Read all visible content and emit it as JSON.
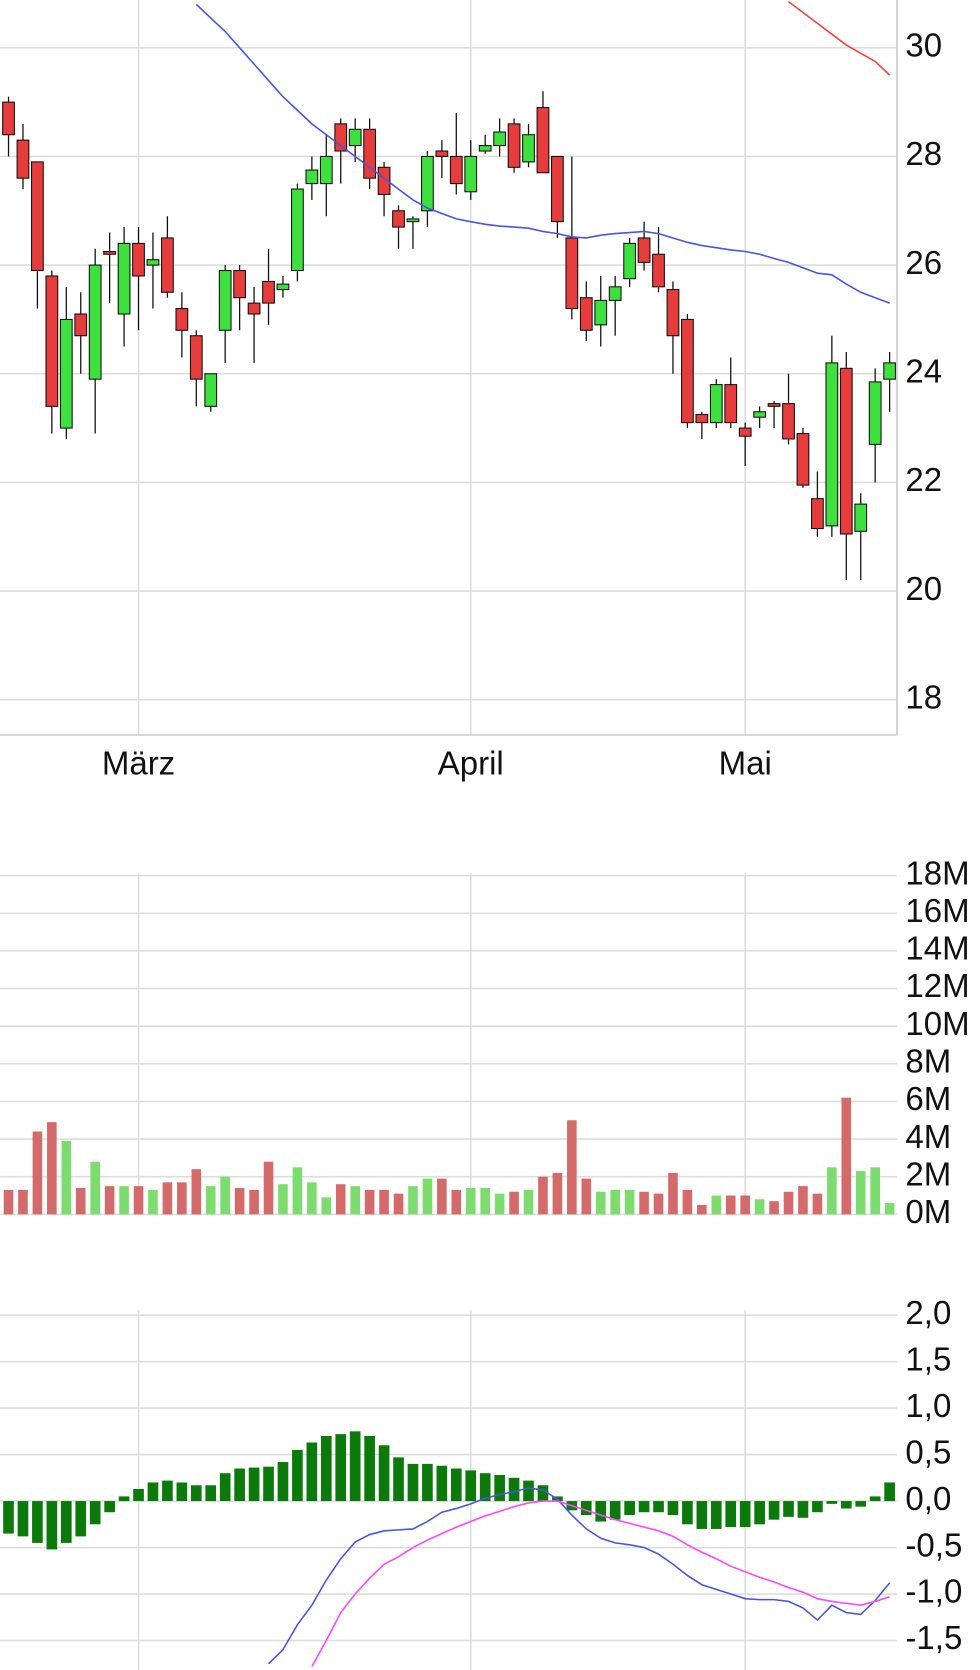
{
  "chart_data": [
    {
      "type": "candlestick",
      "categories": [
        null,
        null,
        null,
        null,
        null,
        null,
        null,
        null,
        null,
        "März",
        null,
        null,
        null,
        null,
        null,
        null,
        null,
        null,
        null,
        null,
        null,
        null,
        null,
        null,
        null,
        null,
        null,
        null,
        null,
        null,
        null,
        null,
        "April",
        null,
        null,
        null,
        null,
        null,
        null,
        null,
        null,
        null,
        null,
        null,
        null,
        null,
        null,
        null,
        null,
        null,
        null,
        "Mai",
        null,
        null,
        null,
        null,
        null,
        null,
        null,
        null,
        null,
        null
      ],
      "open": [
        29.0,
        28.3,
        27.9,
        25.8,
        23.0,
        25.1,
        23.9,
        26.25,
        25.1,
        26.4,
        26.0,
        26.5,
        25.2,
        24.7,
        23.4,
        24.8,
        25.9,
        25.3,
        25.7,
        25.55,
        25.9,
        27.5,
        27.5,
        28.6,
        28.2,
        28.5,
        27.8,
        27.0,
        26.8,
        27.0,
        28.1,
        28.0,
        27.35,
        28.1,
        28.2,
        28.6,
        27.9,
        28.9,
        28.0,
        26.5,
        25.4,
        24.9,
        25.35,
        25.75,
        26.5,
        26.2,
        25.55,
        25.0,
        23.25,
        23.1,
        23.8,
        23.0,
        23.2,
        23.45,
        23.45,
        22.9,
        21.7,
        21.2,
        24.1,
        21.1,
        22.7,
        23.9
      ],
      "high": [
        29.1,
        28.6,
        27.9,
        25.9,
        25.6,
        25.5,
        26.3,
        26.6,
        26.7,
        26.7,
        26.6,
        26.9,
        25.5,
        24.8,
        24.0,
        26.0,
        26.0,
        25.6,
        26.3,
        25.8,
        27.5,
        28.0,
        28.4,
        28.7,
        28.7,
        28.7,
        27.9,
        27.1,
        26.9,
        28.1,
        28.3,
        28.8,
        28.3,
        28.4,
        28.7,
        28.7,
        28.6,
        29.2,
        28.0,
        28.0,
        25.7,
        25.8,
        25.8,
        26.5,
        26.8,
        26.7,
        25.7,
        25.1,
        23.3,
        23.9,
        24.3,
        23.1,
        23.4,
        23.5,
        24.0,
        23.0,
        22.2,
        24.7,
        24.4,
        21.8,
        24.1,
        24.4
      ],
      "low": [
        28.0,
        27.4,
        25.2,
        22.9,
        22.8,
        24.0,
        22.9,
        25.3,
        24.5,
        24.8,
        25.2,
        25.4,
        24.3,
        23.4,
        23.3,
        24.2,
        24.8,
        24.2,
        24.9,
        25.4,
        25.7,
        27.2,
        26.9,
        27.5,
        27.9,
        27.4,
        26.9,
        26.3,
        26.3,
        26.7,
        27.6,
        27.3,
        27.2,
        28.05,
        28.0,
        27.7,
        27.8,
        27.7,
        26.5,
        25.0,
        24.6,
        24.5,
        24.7,
        25.6,
        25.9,
        25.5,
        24.0,
        23.0,
        22.8,
        23.0,
        23.0,
        22.3,
        23.0,
        23.0,
        22.7,
        21.9,
        21.0,
        21.0,
        20.2,
        20.2,
        22.0,
        23.3
      ],
      "close": [
        28.4,
        27.6,
        25.9,
        23.4,
        25.0,
        24.7,
        26.0,
        26.2,
        26.4,
        25.8,
        26.1,
        25.5,
        24.8,
        23.9,
        24.0,
        25.9,
        25.4,
        25.1,
        25.3,
        25.65,
        27.4,
        27.75,
        28.0,
        28.1,
        28.5,
        27.6,
        27.3,
        26.7,
        26.85,
        28.0,
        28.0,
        27.5,
        28.0,
        28.2,
        28.45,
        27.8,
        28.4,
        27.7,
        26.8,
        25.2,
        24.8,
        25.35,
        25.6,
        26.4,
        26.05,
        25.6,
        24.7,
        23.1,
        23.1,
        23.8,
        23.1,
        22.85,
        23.3,
        23.4,
        22.8,
        21.95,
        21.15,
        24.2,
        21.05,
        21.6,
        23.85,
        24.2
      ],
      "up_color": "#3de03d",
      "down_color": "#e63c3c",
      "series": [
        {
          "color": "#4a55dd",
          "values": [
            null,
            null,
            null,
            null,
            null,
            null,
            null,
            null,
            null,
            null,
            null,
            null,
            null,
            30.8,
            30.55,
            30.3,
            30.0,
            29.7,
            29.4,
            29.1,
            28.85,
            28.6,
            28.4,
            28.2,
            28.0,
            27.8,
            27.6,
            27.4,
            27.2,
            27.05,
            26.95,
            26.85,
            26.8,
            26.75,
            26.72,
            26.7,
            26.68,
            26.62,
            26.58,
            26.52,
            26.5,
            26.55,
            26.58,
            26.6,
            26.62,
            26.58,
            26.5,
            26.42,
            26.36,
            26.32,
            26.28,
            26.25,
            26.2,
            26.12,
            26.05,
            25.95,
            25.85,
            25.82,
            25.65,
            25.5,
            25.4,
            25.3
          ]
        },
        {
          "color": "#e8463c",
          "values": [
            null,
            null,
            null,
            null,
            null,
            null,
            null,
            null,
            null,
            null,
            null,
            null,
            null,
            null,
            null,
            null,
            null,
            null,
            null,
            null,
            null,
            null,
            null,
            null,
            null,
            null,
            null,
            null,
            null,
            null,
            null,
            null,
            null,
            null,
            null,
            null,
            null,
            null,
            null,
            null,
            null,
            null,
            null,
            null,
            null,
            null,
            null,
            null,
            null,
            null,
            null,
            null,
            null,
            null,
            30.85,
            30.65,
            30.45,
            30.25,
            30.05,
            29.9,
            29.75,
            29.5
          ]
        }
      ],
      "ylim": [
        17.35,
        30.88
      ],
      "yticks": [
        18,
        20,
        22,
        24,
        26,
        28,
        30
      ],
      "grid": true
    },
    {
      "type": "bar",
      "values": [
        1.3,
        1.3,
        4.4,
        4.9,
        3.9,
        1.4,
        2.8,
        1.5,
        1.5,
        1.5,
        1.3,
        1.7,
        1.7,
        2.4,
        1.5,
        2.0,
        1.4,
        1.3,
        2.8,
        1.6,
        2.5,
        1.7,
        0.9,
        1.6,
        1.5,
        1.3,
        1.3,
        1.1,
        1.5,
        1.9,
        1.9,
        1.3,
        1.4,
        1.4,
        1.1,
        1.2,
        1.3,
        2.0,
        2.2,
        5.0,
        1.9,
        1.2,
        1.3,
        1.3,
        1.2,
        1.1,
        2.2,
        1.3,
        0.5,
        1.0,
        1.0,
        1.0,
        0.8,
        0.7,
        1.2,
        1.5,
        1.1,
        2.5,
        6.2,
        2.3,
        2.5,
        0.6
      ],
      "up_color": "#7ddc6e",
      "down_color": "#d56a6a",
      "ylim": [
        0,
        18
      ],
      "yticks": [
        {
          "value": 0,
          "label": "0M"
        },
        {
          "value": 2,
          "label": "2M"
        },
        {
          "value": 4,
          "label": "4M"
        },
        {
          "value": 6,
          "label": "6M"
        },
        {
          "value": 8,
          "label": "8M"
        },
        {
          "value": 10,
          "label": "10M"
        },
        {
          "value": 12,
          "label": "12M"
        },
        {
          "value": 14,
          "label": "14M"
        },
        {
          "value": 16,
          "label": "16M"
        },
        {
          "value": 18,
          "label": "18M"
        }
      ],
      "grid": true
    },
    {
      "type": "macd",
      "histogram": {
        "color": "#0b7a0b",
        "values": [
          -0.35,
          -0.38,
          -0.45,
          -0.52,
          -0.45,
          -0.38,
          -0.25,
          -0.12,
          0.05,
          0.13,
          0.2,
          0.22,
          0.2,
          0.17,
          0.17,
          0.3,
          0.35,
          0.36,
          0.37,
          0.42,
          0.55,
          0.63,
          0.7,
          0.72,
          0.75,
          0.7,
          0.6,
          0.47,
          0.4,
          0.4,
          0.38,
          0.35,
          0.33,
          0.3,
          0.28,
          0.25,
          0.22,
          0.17,
          0.05,
          -0.1,
          -0.15,
          -0.22,
          -0.2,
          -0.15,
          -0.12,
          -0.12,
          -0.15,
          -0.25,
          -0.3,
          -0.3,
          -0.28,
          -0.28,
          -0.25,
          -0.2,
          -0.17,
          -0.18,
          -0.12,
          -0.03,
          -0.08,
          -0.06,
          0.05,
          0.2
        ]
      },
      "series": [
        {
          "color": "#4a55dd",
          "values": [
            null,
            null,
            null,
            null,
            null,
            null,
            null,
            null,
            null,
            null,
            null,
            null,
            null,
            null,
            null,
            null,
            null,
            null,
            -1.75,
            -1.6,
            -1.33,
            -1.12,
            -0.85,
            -0.62,
            -0.44,
            -0.36,
            -0.32,
            -0.31,
            -0.3,
            -0.22,
            -0.12,
            -0.08,
            -0.03,
            0.03,
            0.07,
            0.1,
            0.14,
            0.12,
            0.02,
            -0.15,
            -0.3,
            -0.4,
            -0.45,
            -0.47,
            -0.5,
            -0.57,
            -0.68,
            -0.8,
            -0.9,
            -0.95,
            -1.0,
            -1.05,
            -1.06,
            -1.06,
            -1.08,
            -1.15,
            -1.28,
            -1.12,
            -1.2,
            -1.22,
            -1.07,
            -0.88
          ]
        },
        {
          "color": "#ff48ff",
          "values": [
            null,
            null,
            null,
            null,
            null,
            null,
            null,
            null,
            null,
            null,
            null,
            null,
            null,
            null,
            null,
            null,
            null,
            null,
            null,
            null,
            null,
            -1.78,
            -1.5,
            -1.2,
            -1.0,
            -0.83,
            -0.68,
            -0.6,
            -0.5,
            -0.42,
            -0.35,
            -0.28,
            -0.22,
            -0.16,
            -0.11,
            -0.06,
            -0.02,
            0.0,
            0.0,
            -0.05,
            -0.1,
            -0.15,
            -0.2,
            -0.24,
            -0.28,
            -0.32,
            -0.38,
            -0.47,
            -0.55,
            -0.62,
            -0.7,
            -0.76,
            -0.82,
            -0.87,
            -0.93,
            -0.98,
            -1.05,
            -1.08,
            -1.1,
            -1.12,
            -1.08,
            -1.03
          ]
        }
      ],
      "ylim": [
        -1.82,
        2.03
      ],
      "yticks": [
        {
          "value": -1.5,
          "label": "-1,5"
        },
        {
          "value": -1,
          "label": "-1,0"
        },
        {
          "value": -0.5,
          "label": "-0,5"
        },
        {
          "value": 0,
          "label": "0,0"
        },
        {
          "value": 0.5,
          "label": "0,5"
        },
        {
          "value": 1,
          "label": "1,0"
        },
        {
          "value": 1.5,
          "label": "1,5"
        },
        {
          "value": 2,
          "label": "2,0"
        }
      ],
      "grid": true
    }
  ]
}
